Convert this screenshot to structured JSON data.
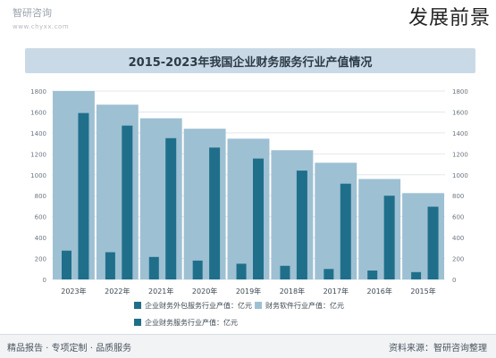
{
  "header": {
    "brand": "智研咨询",
    "url": "www.chyxx.com",
    "corner_title": "发展前景"
  },
  "footer": {
    "source": "资料来源：智研咨询整理",
    "tagline": "精品报告 · 专项定制 · 品质服务"
  },
  "colors": {
    "background": "#ffffff",
    "title_bar": "#c9d9e6",
    "bar_light": "#9ec0d3",
    "bar_dark": "#1f6f8b",
    "axis_text": "#6b7680",
    "grid": "#e3e8ec"
  },
  "chart_data": {
    "type": "bar",
    "title": "2015-2023年我国企业财务服务行业产值情况",
    "categories": [
      "2023年",
      "2022年",
      "2021年",
      "2020年",
      "2019年",
      "2018年",
      "2017年",
      "2016年",
      "2015年"
    ],
    "series": [
      {
        "name": "财务软件行业产值：亿元",
        "values": [
          1800,
          1670,
          1540,
          1440,
          1345,
          1235,
          1115,
          960,
          825
        ]
      },
      {
        "name": "企业财务外包服务行业产值：亿元",
        "values": [
          1590,
          1470,
          1350,
          1260,
          1155,
          1040,
          915,
          800,
          695
        ]
      },
      {
        "name": "企业财务服务行业产值：亿元",
        "values": [
          275,
          260,
          215,
          180,
          150,
          130,
          100,
          85,
          70
        ]
      }
    ],
    "yticks": [
      "1800",
      "1600",
      "1400",
      "1200",
      "1000",
      "800",
      "600",
      "400",
      "200",
      "0"
    ],
    "ylim": [
      0,
      1800
    ],
    "grid": true,
    "legend_position": "bottom"
  }
}
